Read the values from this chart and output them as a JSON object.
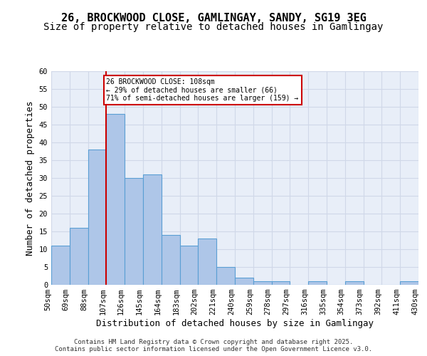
{
  "title_line1": "26, BROCKWOOD CLOSE, GAMLINGAY, SANDY, SG19 3EG",
  "title_line2": "Size of property relative to detached houses in Gamlingay",
  "xlabel": "Distribution of detached houses by size in Gamlingay",
  "ylabel": "Number of detached properties",
  "bar_values": [
    11,
    16,
    38,
    48,
    30,
    31,
    14,
    11,
    13,
    5,
    2,
    1,
    1,
    0,
    1,
    0,
    1,
    0,
    0,
    1
  ],
  "bin_labels": [
    "50sqm",
    "69sqm",
    "88sqm",
    "107sqm",
    "126sqm",
    "145sqm",
    "164sqm",
    "183sqm",
    "202sqm",
    "221sqm",
    "240sqm",
    "259sqm",
    "278sqm",
    "297sqm",
    "316sqm",
    "335sqm",
    "354sqm",
    "373sqm",
    "392sqm",
    "411sqm",
    "430sqm"
  ],
  "bar_color": "#aec6e8",
  "bar_edge_color": "#5a9fd4",
  "grid_color": "#d0d8e8",
  "bg_color": "#e8eef8",
  "vline_x": 2.5,
  "vline_color": "#cc0000",
  "annotation_text": "26 BROCKWOOD CLOSE: 108sqm\n← 29% of detached houses are smaller (66)\n71% of semi-detached houses are larger (159) →",
  "annotation_box_color": "#cc0000",
  "ylim": [
    0,
    60
  ],
  "yticks": [
    0,
    5,
    10,
    15,
    20,
    25,
    30,
    35,
    40,
    45,
    50,
    55,
    60
  ],
  "footer_text": "Contains HM Land Registry data © Crown copyright and database right 2025.\nContains public sector information licensed under the Open Government Licence v3.0.",
  "title_fontsize": 11,
  "subtitle_fontsize": 10,
  "tick_fontsize": 7.5,
  "label_fontsize": 9
}
